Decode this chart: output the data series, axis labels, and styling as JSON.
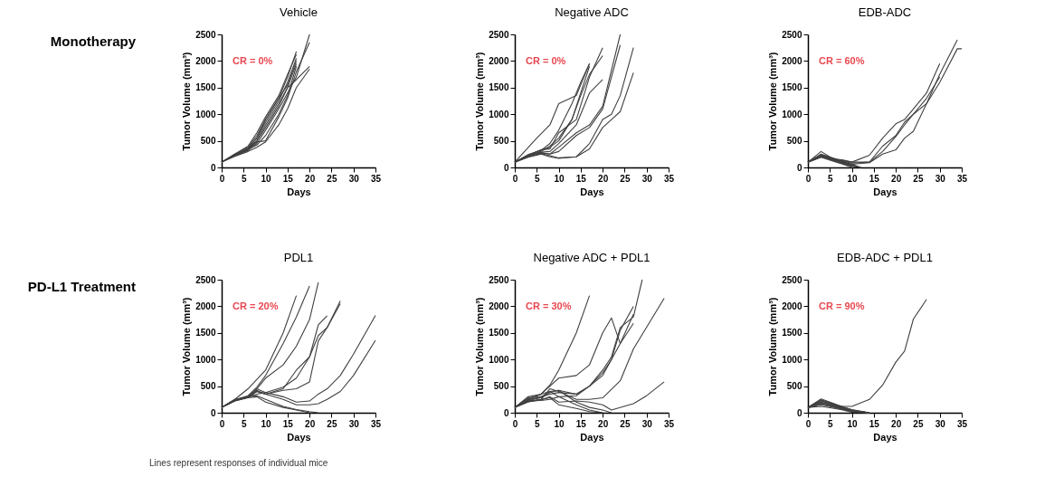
{
  "chart_data": [
    {
      "type": "line",
      "title": "Vehicle",
      "xlabel": "Days",
      "ylabel": "Tumor Volume (mm³)",
      "xlim": [
        0,
        35
      ],
      "ylim": [
        0,
        2500
      ],
      "xticks": [
        0,
        5,
        10,
        15,
        20,
        25,
        30,
        35
      ],
      "yticks": [
        0,
        500,
        1000,
        1500,
        2000,
        2500
      ],
      "annotations": [
        "CR = 0%",
        "Monotherapy"
      ],
      "series": [
        {
          "color": "#404040",
          "x": [
            0,
            3,
            6,
            8,
            10,
            13,
            15,
            17
          ],
          "values": [
            100,
            250,
            380,
            600,
            900,
            1300,
            1700,
            2180
          ]
        },
        {
          "color": "#404040",
          "x": [
            0,
            3,
            6,
            8,
            10,
            13,
            15,
            17
          ],
          "values": [
            100,
            240,
            350,
            550,
            850,
            1250,
            1600,
            2050
          ]
        },
        {
          "color": "#404040",
          "x": [
            0,
            3,
            6,
            8,
            10,
            13,
            15,
            17
          ],
          "values": [
            100,
            230,
            330,
            500,
            750,
            1150,
            1500,
            1950
          ]
        },
        {
          "color": "#404040",
          "x": [
            0,
            3,
            6,
            8,
            10,
            13,
            15,
            17,
            20
          ],
          "values": [
            100,
            220,
            320,
            450,
            700,
            1100,
            1400,
            1700,
            2500
          ]
        },
        {
          "color": "#404040",
          "x": [
            0,
            3,
            6,
            8,
            10,
            13,
            15,
            17,
            20
          ],
          "values": [
            100,
            230,
            350,
            500,
            800,
            1200,
            1500,
            1650,
            1900
          ]
        },
        {
          "color": "#404040",
          "x": [
            0,
            3,
            6,
            8,
            10,
            13,
            15,
            17,
            20
          ],
          "values": [
            100,
            210,
            300,
            380,
            480,
            800,
            1100,
            1500,
            1850
          ]
        },
        {
          "color": "#404040",
          "x": [
            0,
            3,
            6,
            8,
            10,
            13,
            15,
            17,
            20
          ],
          "values": [
            100,
            220,
            330,
            480,
            500,
            950,
            1300,
            1800,
            2350
          ]
        },
        {
          "color": "#404040",
          "x": [
            0,
            3,
            6,
            8,
            10,
            13,
            15,
            17
          ],
          "values": [
            100,
            240,
            360,
            550,
            900,
            1300,
            1550,
            2000
          ]
        },
        {
          "color": "#404040",
          "x": [
            0,
            3,
            6,
            8,
            10,
            13,
            15,
            17
          ],
          "values": [
            100,
            230,
            340,
            420,
            600,
            1000,
            1350,
            1900
          ]
        },
        {
          "color": "#404040",
          "x": [
            0,
            3,
            6,
            8,
            10,
            13,
            15,
            17
          ],
          "values": [
            100,
            250,
            400,
            650,
            950,
            1350,
            1750,
            2120
          ]
        }
      ]
    },
    {
      "type": "line",
      "title": "Negative ADC",
      "xlabel": "Days",
      "ylabel": "Tumor Volume (mm³)",
      "xlim": [
        0,
        35
      ],
      "ylim": [
        0,
        2500
      ],
      "xticks": [
        0,
        5,
        10,
        15,
        20,
        25,
        30,
        35
      ],
      "yticks": [
        0,
        500,
        1000,
        1500,
        2000,
        2500
      ],
      "annotations": [
        "CR = 0%"
      ],
      "series": [
        {
          "color": "#404040",
          "x": [
            0,
            5,
            8,
            10,
            14,
            17
          ],
          "values": [
            100,
            550,
            800,
            1200,
            1350,
            1950
          ]
        },
        {
          "color": "#404040",
          "x": [
            0,
            3,
            6,
            8,
            10,
            13,
            15,
            17
          ],
          "values": [
            100,
            240,
            320,
            450,
            700,
            1200,
            1600,
            1950
          ]
        },
        {
          "color": "#404040",
          "x": [
            0,
            3,
            6,
            8,
            10,
            13,
            15,
            17,
            20
          ],
          "values": [
            100,
            220,
            300,
            400,
            550,
            900,
            1350,
            1750,
            2100
          ]
        },
        {
          "color": "#404040",
          "x": [
            0,
            3,
            6,
            8,
            10,
            14,
            17,
            20
          ],
          "values": [
            100,
            230,
            330,
            350,
            650,
            900,
            1700,
            2250
          ]
        },
        {
          "color": "#404040",
          "x": [
            0,
            3,
            6,
            8,
            10,
            14,
            17,
            20
          ],
          "values": [
            100,
            220,
            290,
            300,
            450,
            800,
            1400,
            1650
          ]
        },
        {
          "color": "#404040",
          "x": [
            0,
            3,
            6,
            8,
            10,
            14,
            17,
            20,
            24
          ],
          "values": [
            100,
            220,
            280,
            250,
            380,
            650,
            800,
            1150,
            2500
          ]
        },
        {
          "color": "#404040",
          "x": [
            0,
            3,
            6,
            8,
            10,
            14,
            17,
            20,
            24
          ],
          "values": [
            100,
            200,
            270,
            250,
            300,
            600,
            750,
            1100,
            2300
          ]
        },
        {
          "color": "#404040",
          "x": [
            0,
            3,
            6,
            8,
            10,
            14,
            17,
            20,
            22,
            24,
            27
          ],
          "values": [
            100,
            200,
            260,
            220,
            180,
            200,
            450,
            900,
            1000,
            1350,
            2250
          ]
        },
        {
          "color": "#404040",
          "x": [
            0,
            3,
            6,
            8,
            10,
            14,
            17,
            20,
            22,
            24,
            27
          ],
          "values": [
            100,
            190,
            250,
            200,
            170,
            200,
            350,
            750,
            900,
            1050,
            1780
          ]
        },
        {
          "color": "#404040",
          "x": [
            0,
            3,
            6,
            8,
            10,
            13,
            15,
            17
          ],
          "values": [
            100,
            230,
            330,
            380,
            500,
            900,
            1400,
            1900
          ]
        }
      ]
    },
    {
      "type": "line",
      "title": "EDB-ADC",
      "xlabel": "Days",
      "ylabel": "Tumor Volume (mm³)",
      "xlim": [
        0,
        35
      ],
      "ylim": [
        0,
        2500
      ],
      "xticks": [
        0,
        5,
        10,
        15,
        20,
        25,
        30,
        35
      ],
      "yticks": [
        0,
        500,
        1000,
        1500,
        2000,
        2500
      ],
      "annotations": [
        "CR = 60%"
      ],
      "series": [
        {
          "color": "#404040",
          "x": [
            0,
            3,
            6,
            8,
            10,
            14,
            17,
            20,
            22,
            24,
            27,
            30
          ],
          "values": [
            100,
            300,
            150,
            130,
            100,
            230,
            550,
            820,
            900,
            1100,
            1400,
            1950
          ]
        },
        {
          "color": "#404040",
          "x": [
            0,
            3,
            6,
            8,
            10,
            14,
            17,
            20,
            22,
            24,
            27,
            30,
            34
          ],
          "values": [
            100,
            220,
            150,
            120,
            80,
            100,
            400,
            600,
            850,
            1000,
            1200,
            1750,
            2400
          ]
        },
        {
          "color": "#404040",
          "x": [
            0,
            3,
            6,
            8,
            10,
            14,
            17,
            20,
            22,
            24,
            27,
            30,
            34,
            35
          ],
          "values": [
            100,
            200,
            130,
            100,
            60,
            90,
            250,
            330,
            550,
            680,
            1200,
            1600,
            2230,
            2230
          ]
        },
        {
          "color": "#404040",
          "x": [
            0,
            3,
            6,
            8,
            10,
            14,
            17,
            20,
            22,
            24,
            27,
            30
          ],
          "values": [
            100,
            250,
            160,
            140,
            100,
            100,
            300,
            580,
            800,
            1000,
            1300,
            1700
          ]
        },
        {
          "color": "#404040",
          "x": [
            0,
            3,
            6,
            8,
            10,
            12
          ],
          "values": [
            100,
            210,
            150,
            80,
            30,
            0
          ]
        },
        {
          "color": "#404040",
          "x": [
            0,
            3,
            6,
            8,
            10,
            12
          ],
          "values": [
            100,
            230,
            140,
            90,
            40,
            0
          ]
        },
        {
          "color": "#404040",
          "x": [
            0,
            3,
            6,
            8,
            10,
            12
          ],
          "values": [
            100,
            200,
            120,
            70,
            20,
            0
          ]
        },
        {
          "color": "#404040",
          "x": [
            0,
            3,
            6,
            8,
            10,
            12
          ],
          "values": [
            100,
            220,
            160,
            100,
            50,
            0
          ]
        },
        {
          "color": "#404040",
          "x": [
            0,
            3,
            6,
            8,
            10
          ],
          "values": [
            100,
            190,
            110,
            60,
            0
          ]
        },
        {
          "color": "#404040",
          "x": [
            0,
            3,
            6,
            8,
            10,
            12
          ],
          "values": [
            100,
            240,
            170,
            110,
            60,
            0
          ]
        }
      ]
    },
    {
      "type": "line",
      "title": "PDL1",
      "xlabel": "Days",
      "ylabel": "Tumor Volume (mm³)",
      "xlim": [
        0,
        35
      ],
      "ylim": [
        0,
        2500
      ],
      "xticks": [
        0,
        5,
        10,
        15,
        20,
        25,
        30,
        35
      ],
      "yticks": [
        0,
        500,
        1000,
        1500,
        2000,
        2500
      ],
      "annotations": [
        "CR = 20%",
        "PD-L1 Treatment",
        "Lines represent responses of individual mice"
      ],
      "series": [
        {
          "color": "#404040",
          "x": [
            0,
            3,
            6,
            10,
            14,
            17
          ],
          "values": [
            100,
            250,
            450,
            800,
            1500,
            2200
          ]
        },
        {
          "color": "#404040",
          "x": [
            0,
            3,
            6,
            8,
            10,
            14,
            17,
            20
          ],
          "values": [
            100,
            240,
            320,
            480,
            700,
            1300,
            1800,
            2380
          ]
        },
        {
          "color": "#404040",
          "x": [
            0,
            3,
            6,
            8,
            10,
            14,
            17,
            20,
            22
          ],
          "values": [
            100,
            230,
            300,
            450,
            650,
            900,
            1250,
            1750,
            2450
          ]
        },
        {
          "color": "#404040",
          "x": [
            0,
            3,
            6,
            8,
            10,
            14,
            17,
            20,
            22,
            24
          ],
          "values": [
            100,
            250,
            300,
            400,
            350,
            450,
            800,
            1050,
            1650,
            1820
          ]
        },
        {
          "color": "#404040",
          "x": [
            0,
            3,
            6,
            8,
            10,
            14,
            17,
            20,
            22,
            24,
            27
          ],
          "values": [
            100,
            240,
            300,
            350,
            380,
            480,
            650,
            1050,
            1450,
            1600,
            2100
          ]
        },
        {
          "color": "#404040",
          "x": [
            0,
            3,
            6,
            8,
            10,
            14,
            17,
            20,
            22,
            24,
            27
          ],
          "values": [
            100,
            230,
            290,
            420,
            350,
            420,
            450,
            580,
            1350,
            1600,
            2050
          ]
        },
        {
          "color": "#404040",
          "x": [
            0,
            3,
            6,
            8,
            10,
            14,
            17,
            20,
            22,
            24,
            27,
            30,
            35
          ],
          "values": [
            100,
            230,
            300,
            450,
            380,
            300,
            200,
            220,
            350,
            450,
            700,
            1100,
            1830
          ]
        },
        {
          "color": "#404040",
          "x": [
            0,
            3,
            6,
            8,
            10,
            14,
            17,
            20,
            22,
            24,
            27,
            30,
            35
          ],
          "values": [
            100,
            220,
            290,
            400,
            350,
            250,
            150,
            150,
            170,
            250,
            400,
            700,
            1360
          ]
        },
        {
          "color": "#404040",
          "x": [
            0,
            3,
            6,
            8,
            10,
            14,
            17,
            20,
            22
          ],
          "values": [
            100,
            230,
            300,
            320,
            250,
            120,
            60,
            20,
            0
          ]
        },
        {
          "color": "#404040",
          "x": [
            0,
            3,
            6,
            8,
            10,
            14,
            17,
            20
          ],
          "values": [
            100,
            220,
            280,
            300,
            200,
            100,
            50,
            0
          ]
        }
      ]
    },
    {
      "type": "line",
      "title": "Negative ADC + PDL1",
      "xlabel": "Days",
      "ylabel": "Tumor Volume (mm³)",
      "xlim": [
        0,
        35
      ],
      "ylim": [
        0,
        2500
      ],
      "xticks": [
        0,
        5,
        10,
        15,
        20,
        25,
        30,
        35
      ],
      "yticks": [
        0,
        500,
        1000,
        1500,
        2000,
        2500
      ],
      "annotations": [
        "CR = 30%"
      ],
      "series": [
        {
          "color": "#404040",
          "x": [
            0,
            3,
            6,
            8,
            10,
            14,
            17
          ],
          "values": [
            100,
            250,
            350,
            520,
            800,
            1500,
            2200
          ]
        },
        {
          "color": "#404040",
          "x": [
            0,
            3,
            6,
            8,
            10,
            14,
            17,
            20,
            22,
            24,
            27
          ],
          "values": [
            100,
            300,
            350,
            500,
            650,
            700,
            900,
            1500,
            1780,
            1300,
            1850
          ]
        },
        {
          "color": "#404040",
          "x": [
            0,
            3,
            6,
            8,
            10,
            14,
            17,
            20,
            22,
            24,
            27,
            29
          ],
          "values": [
            100,
            260,
            350,
            400,
            300,
            320,
            500,
            800,
            1050,
            1600,
            1800,
            2500
          ]
        },
        {
          "color": "#404040",
          "x": [
            0,
            3,
            6,
            8,
            10,
            14,
            17,
            20,
            22,
            24,
            27
          ],
          "values": [
            100,
            240,
            300,
            350,
            380,
            350,
            500,
            750,
            1000,
            1550,
            2000
          ]
        },
        {
          "color": "#404040",
          "x": [
            0,
            3,
            6,
            8,
            10,
            14,
            17,
            20,
            22,
            24,
            27
          ],
          "values": [
            100,
            230,
            280,
            380,
            420,
            350,
            500,
            700,
            1000,
            1300,
            1680
          ]
        },
        {
          "color": "#404040",
          "x": [
            0,
            3,
            6,
            8,
            10,
            14,
            17,
            20,
            24,
            27,
            34
          ],
          "values": [
            100,
            220,
            250,
            450,
            400,
            250,
            250,
            280,
            600,
            1200,
            2150
          ]
        },
        {
          "color": "#404040",
          "x": [
            0,
            3,
            6,
            8,
            10,
            14,
            17,
            20,
            22,
            27,
            30,
            34
          ],
          "values": [
            100,
            210,
            240,
            300,
            200,
            220,
            200,
            150,
            50,
            170,
            320,
            580
          ]
        },
        {
          "color": "#404040",
          "x": [
            0,
            3,
            6,
            8,
            10,
            14,
            17,
            20,
            22
          ],
          "values": [
            100,
            280,
            300,
            400,
            420,
            200,
            100,
            50,
            0
          ]
        },
        {
          "color": "#404040",
          "x": [
            0,
            3,
            6,
            8,
            10,
            14,
            17,
            20
          ],
          "values": [
            100,
            200,
            250,
            280,
            150,
            80,
            20,
            0
          ]
        },
        {
          "color": "#404040",
          "x": [
            0,
            3,
            6,
            8,
            10,
            14,
            17,
            20
          ],
          "values": [
            100,
            220,
            230,
            250,
            300,
            150,
            50,
            0
          ]
        }
      ]
    },
    {
      "type": "line",
      "title": "EDB-ADC + PDL1",
      "xlabel": "Days",
      "ylabel": "Tumor Volume (mm³)",
      "xlim": [
        0,
        35
      ],
      "ylim": [
        0,
        2500
      ],
      "xticks": [
        0,
        5,
        10,
        15,
        20,
        25,
        30,
        35
      ],
      "yticks": [
        0,
        500,
        1000,
        1500,
        2000,
        2500
      ],
      "annotations": [
        "CR = 90%"
      ],
      "series": [
        {
          "color": "#404040",
          "x": [
            0,
            3,
            6,
            8,
            10,
            14,
            17,
            20,
            22,
            24,
            27
          ],
          "values": [
            100,
            230,
            150,
            120,
            120,
            250,
            520,
            950,
            1160,
            1760,
            2130
          ]
        },
        {
          "color": "#404040",
          "x": [
            0,
            3,
            6,
            8,
            10,
            14
          ],
          "values": [
            100,
            260,
            170,
            100,
            50,
            0
          ]
        },
        {
          "color": "#404040",
          "x": [
            0,
            3,
            6,
            8,
            10,
            14
          ],
          "values": [
            100,
            200,
            140,
            80,
            30,
            0
          ]
        },
        {
          "color": "#404040",
          "x": [
            0,
            3,
            6,
            8,
            10,
            14
          ],
          "values": [
            100,
            180,
            120,
            70,
            30,
            0
          ]
        },
        {
          "color": "#404040",
          "x": [
            0,
            3,
            6,
            8,
            10,
            14
          ],
          "values": [
            100,
            150,
            100,
            60,
            20,
            0
          ]
        },
        {
          "color": "#404040",
          "x": [
            0,
            3,
            6,
            8,
            10,
            14
          ],
          "values": [
            100,
            220,
            150,
            90,
            40,
            0
          ]
        },
        {
          "color": "#404040",
          "x": [
            0,
            3,
            6,
            8,
            10,
            14
          ],
          "values": [
            100,
            120,
            80,
            50,
            10,
            0
          ]
        },
        {
          "color": "#404040",
          "x": [
            0,
            3,
            6,
            8,
            10,
            14
          ],
          "values": [
            100,
            240,
            160,
            110,
            60,
            0
          ]
        },
        {
          "color": "#404040",
          "x": [
            0,
            3,
            6,
            8,
            10,
            14
          ],
          "values": [
            100,
            190,
            130,
            80,
            40,
            0
          ]
        },
        {
          "color": "#404040",
          "x": [
            0,
            3,
            6,
            8,
            10,
            14
          ],
          "values": [
            100,
            170,
            110,
            70,
            20,
            0
          ]
        }
      ]
    }
  ]
}
